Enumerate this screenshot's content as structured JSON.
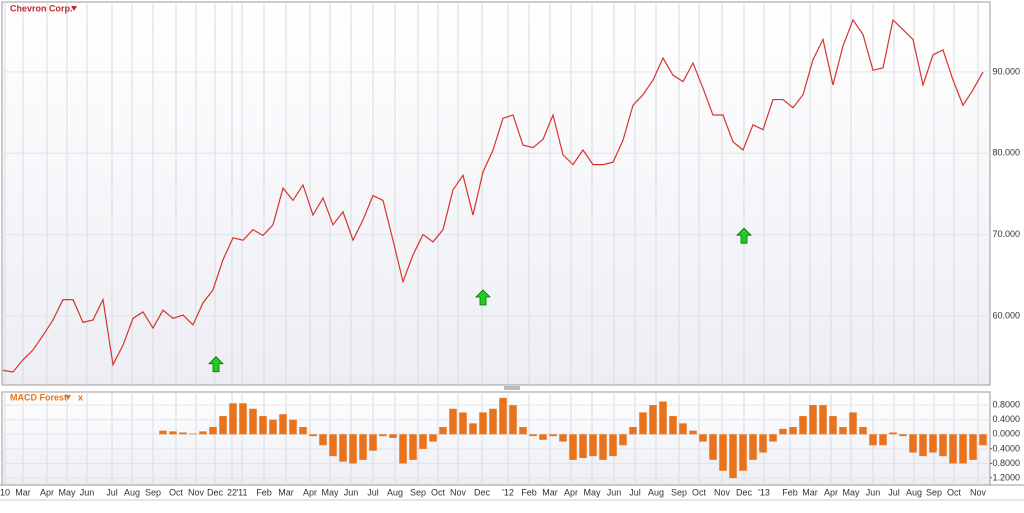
{
  "chart_data": [
    {
      "type": "line",
      "title": "Chevron Corp.",
      "color": "#d9332f",
      "values": [
        53.3,
        53.1,
        54.6,
        55.8,
        57.6,
        59.5,
        62.0,
        62.0,
        59.2,
        59.5,
        62.0,
        54.0,
        56.4,
        59.7,
        60.5,
        58.5,
        60.7,
        59.7,
        60.1,
        58.9,
        61.6,
        63.2,
        66.9,
        69.6,
        69.3,
        70.6,
        69.9,
        71.2,
        75.7,
        74.2,
        76.1,
        72.4,
        74.5,
        71.2,
        72.8,
        69.3,
        71.8,
        74.8,
        74.2,
        69.3,
        64.2,
        67.5,
        70.0,
        69.1,
        70.6,
        75.5,
        77.3,
        72.4,
        77.7,
        80.4,
        84.3,
        84.7,
        81.0,
        80.7,
        81.7,
        84.7,
        79.8,
        78.6,
        80.4,
        78.6,
        78.6,
        78.9,
        81.6,
        85.9,
        87.2,
        89.0,
        91.7,
        89.6,
        88.8,
        91.1,
        88.0,
        84.7,
        84.7,
        81.4,
        80.4,
        83.5,
        82.9,
        86.6,
        86.6,
        85.6,
        87.2,
        91.5,
        94.0,
        88.4,
        93.2,
        96.4,
        94.6,
        90.2,
        90.5,
        96.4,
        95.2,
        94.0,
        88.4,
        92.1,
        92.7,
        89.0,
        85.9,
        87.8,
        90.0
      ],
      "signals": {
        "color": "#22cc22",
        "x": [
          21.3,
          48,
          74.1
        ],
        "y": [
          54.0,
          62.2,
          69.8
        ]
      },
      "xlim": [
        -0.1,
        98.7
      ],
      "ylim": [
        51.5,
        98.6
      ],
      "yticks": [
        {
          "value": 60,
          "label": "60.000"
        },
        {
          "value": 70,
          "label": "70.000"
        },
        {
          "value": 80,
          "label": "80.000"
        },
        {
          "value": 90,
          "label": "90.000"
        }
      ],
      "grid": true
    },
    {
      "type": "bar",
      "title": "MACD Forest",
      "close_label": "x",
      "color": "#e8731c",
      "values": [
        null,
        null,
        null,
        null,
        null,
        null,
        null,
        null,
        null,
        null,
        null,
        null,
        null,
        null,
        null,
        null,
        0.1,
        0.08,
        0.05,
        0.02,
        0.08,
        0.2,
        0.5,
        0.85,
        0.85,
        0.7,
        0.5,
        0.4,
        0.55,
        0.4,
        0.2,
        -0.05,
        -0.3,
        -0.6,
        -0.75,
        -0.8,
        -0.7,
        -0.45,
        -0.05,
        -0.1,
        -0.8,
        -0.7,
        -0.4,
        -0.2,
        0.2,
        0.7,
        0.6,
        0.3,
        0.6,
        0.7,
        1.0,
        0.8,
        0.2,
        -0.05,
        -0.15,
        -0.05,
        -0.2,
        -0.7,
        -0.65,
        -0.6,
        -0.7,
        -0.6,
        -0.3,
        0.2,
        0.6,
        0.8,
        0.9,
        0.5,
        0.3,
        0.1,
        -0.2,
        -0.7,
        -1.0,
        -1.2,
        -1.0,
        -0.7,
        -0.5,
        -0.2,
        0.15,
        0.2,
        0.5,
        0.8,
        0.8,
        0.5,
        0.2,
        0.6,
        0.2,
        -0.3,
        -0.3,
        0.05,
        -0.05,
        -0.5,
        -0.6,
        -0.5,
        -0.6,
        -0.8,
        -0.8,
        -0.7,
        -0.3
      ],
      "xlim": [
        -0.1,
        98.7
      ],
      "ylim": [
        -1.39,
        1.16
      ],
      "yticks": [
        {
          "value": -1.2,
          "label": "-1.2000"
        },
        {
          "value": -0.8,
          "label": "-0.8000"
        },
        {
          "value": -0.4,
          "label": "-0.4000"
        },
        {
          "value": 0,
          "label": "0.0000"
        },
        {
          "value": 0.4,
          "label": "0.4000"
        },
        {
          "value": 0.8,
          "label": "0.8000"
        }
      ],
      "xticks": [
        {
          "value": 0.2,
          "label": "10"
        },
        {
          "value": 2,
          "label": "Mar"
        },
        {
          "value": 4.4,
          "label": "Apr"
        },
        {
          "value": 6.4,
          "label": "May"
        },
        {
          "value": 8.4,
          "label": "Jun"
        },
        {
          "value": 10.9,
          "label": "Jul"
        },
        {
          "value": 12.9,
          "label": "Aug"
        },
        {
          "value": 15,
          "label": "Sep"
        },
        {
          "value": 17.3,
          "label": "Oct"
        },
        {
          "value": 19.3,
          "label": "Nov"
        },
        {
          "value": 21.2,
          "label": "Dec"
        },
        {
          "value": 22.9,
          "label": "22"
        },
        {
          "value": 23.9,
          "label": "'11"
        },
        {
          "value": 26.1,
          "label": "Feb"
        },
        {
          "value": 28.3,
          "label": "Mar"
        },
        {
          "value": 30.7,
          "label": "Apr"
        },
        {
          "value": 32.7,
          "label": "May"
        },
        {
          "value": 34.8,
          "label": "Jun"
        },
        {
          "value": 37,
          "label": "Jul"
        },
        {
          "value": 39.2,
          "label": "Aug"
        },
        {
          "value": 41.5,
          "label": "Sep"
        },
        {
          "value": 43.5,
          "label": "Oct"
        },
        {
          "value": 45.5,
          "label": "Nov"
        },
        {
          "value": 47.9,
          "label": "Dec"
        },
        {
          "value": 50.5,
          "label": "'12"
        },
        {
          "value": 52.6,
          "label": "Feb"
        },
        {
          "value": 54.7,
          "label": "Mar"
        },
        {
          "value": 56.8,
          "label": "Apr"
        },
        {
          "value": 58.9,
          "label": "May"
        },
        {
          "value": 61.1,
          "label": "Jun"
        },
        {
          "value": 63.2,
          "label": "Jul"
        },
        {
          "value": 65.3,
          "label": "Aug"
        },
        {
          "value": 67.6,
          "label": "Sep"
        },
        {
          "value": 69.6,
          "label": "Oct"
        },
        {
          "value": 71.9,
          "label": "Nov"
        },
        {
          "value": 74.1,
          "label": "Dec"
        },
        {
          "value": 76.1,
          "label": "'13"
        },
        {
          "value": 78.7,
          "label": "Feb"
        },
        {
          "value": 80.7,
          "label": "Mar"
        },
        {
          "value": 82.8,
          "label": "Apr"
        },
        {
          "value": 84.8,
          "label": "May"
        },
        {
          "value": 87,
          "label": "Jun"
        },
        {
          "value": 89.1,
          "label": "Jul"
        },
        {
          "value": 91.1,
          "label": "Aug"
        },
        {
          "value": 93.1,
          "label": "Sep"
        },
        {
          "value": 95.1,
          "label": "Oct"
        },
        {
          "value": 97.5,
          "label": "Nov"
        }
      ],
      "grid": true
    }
  ]
}
